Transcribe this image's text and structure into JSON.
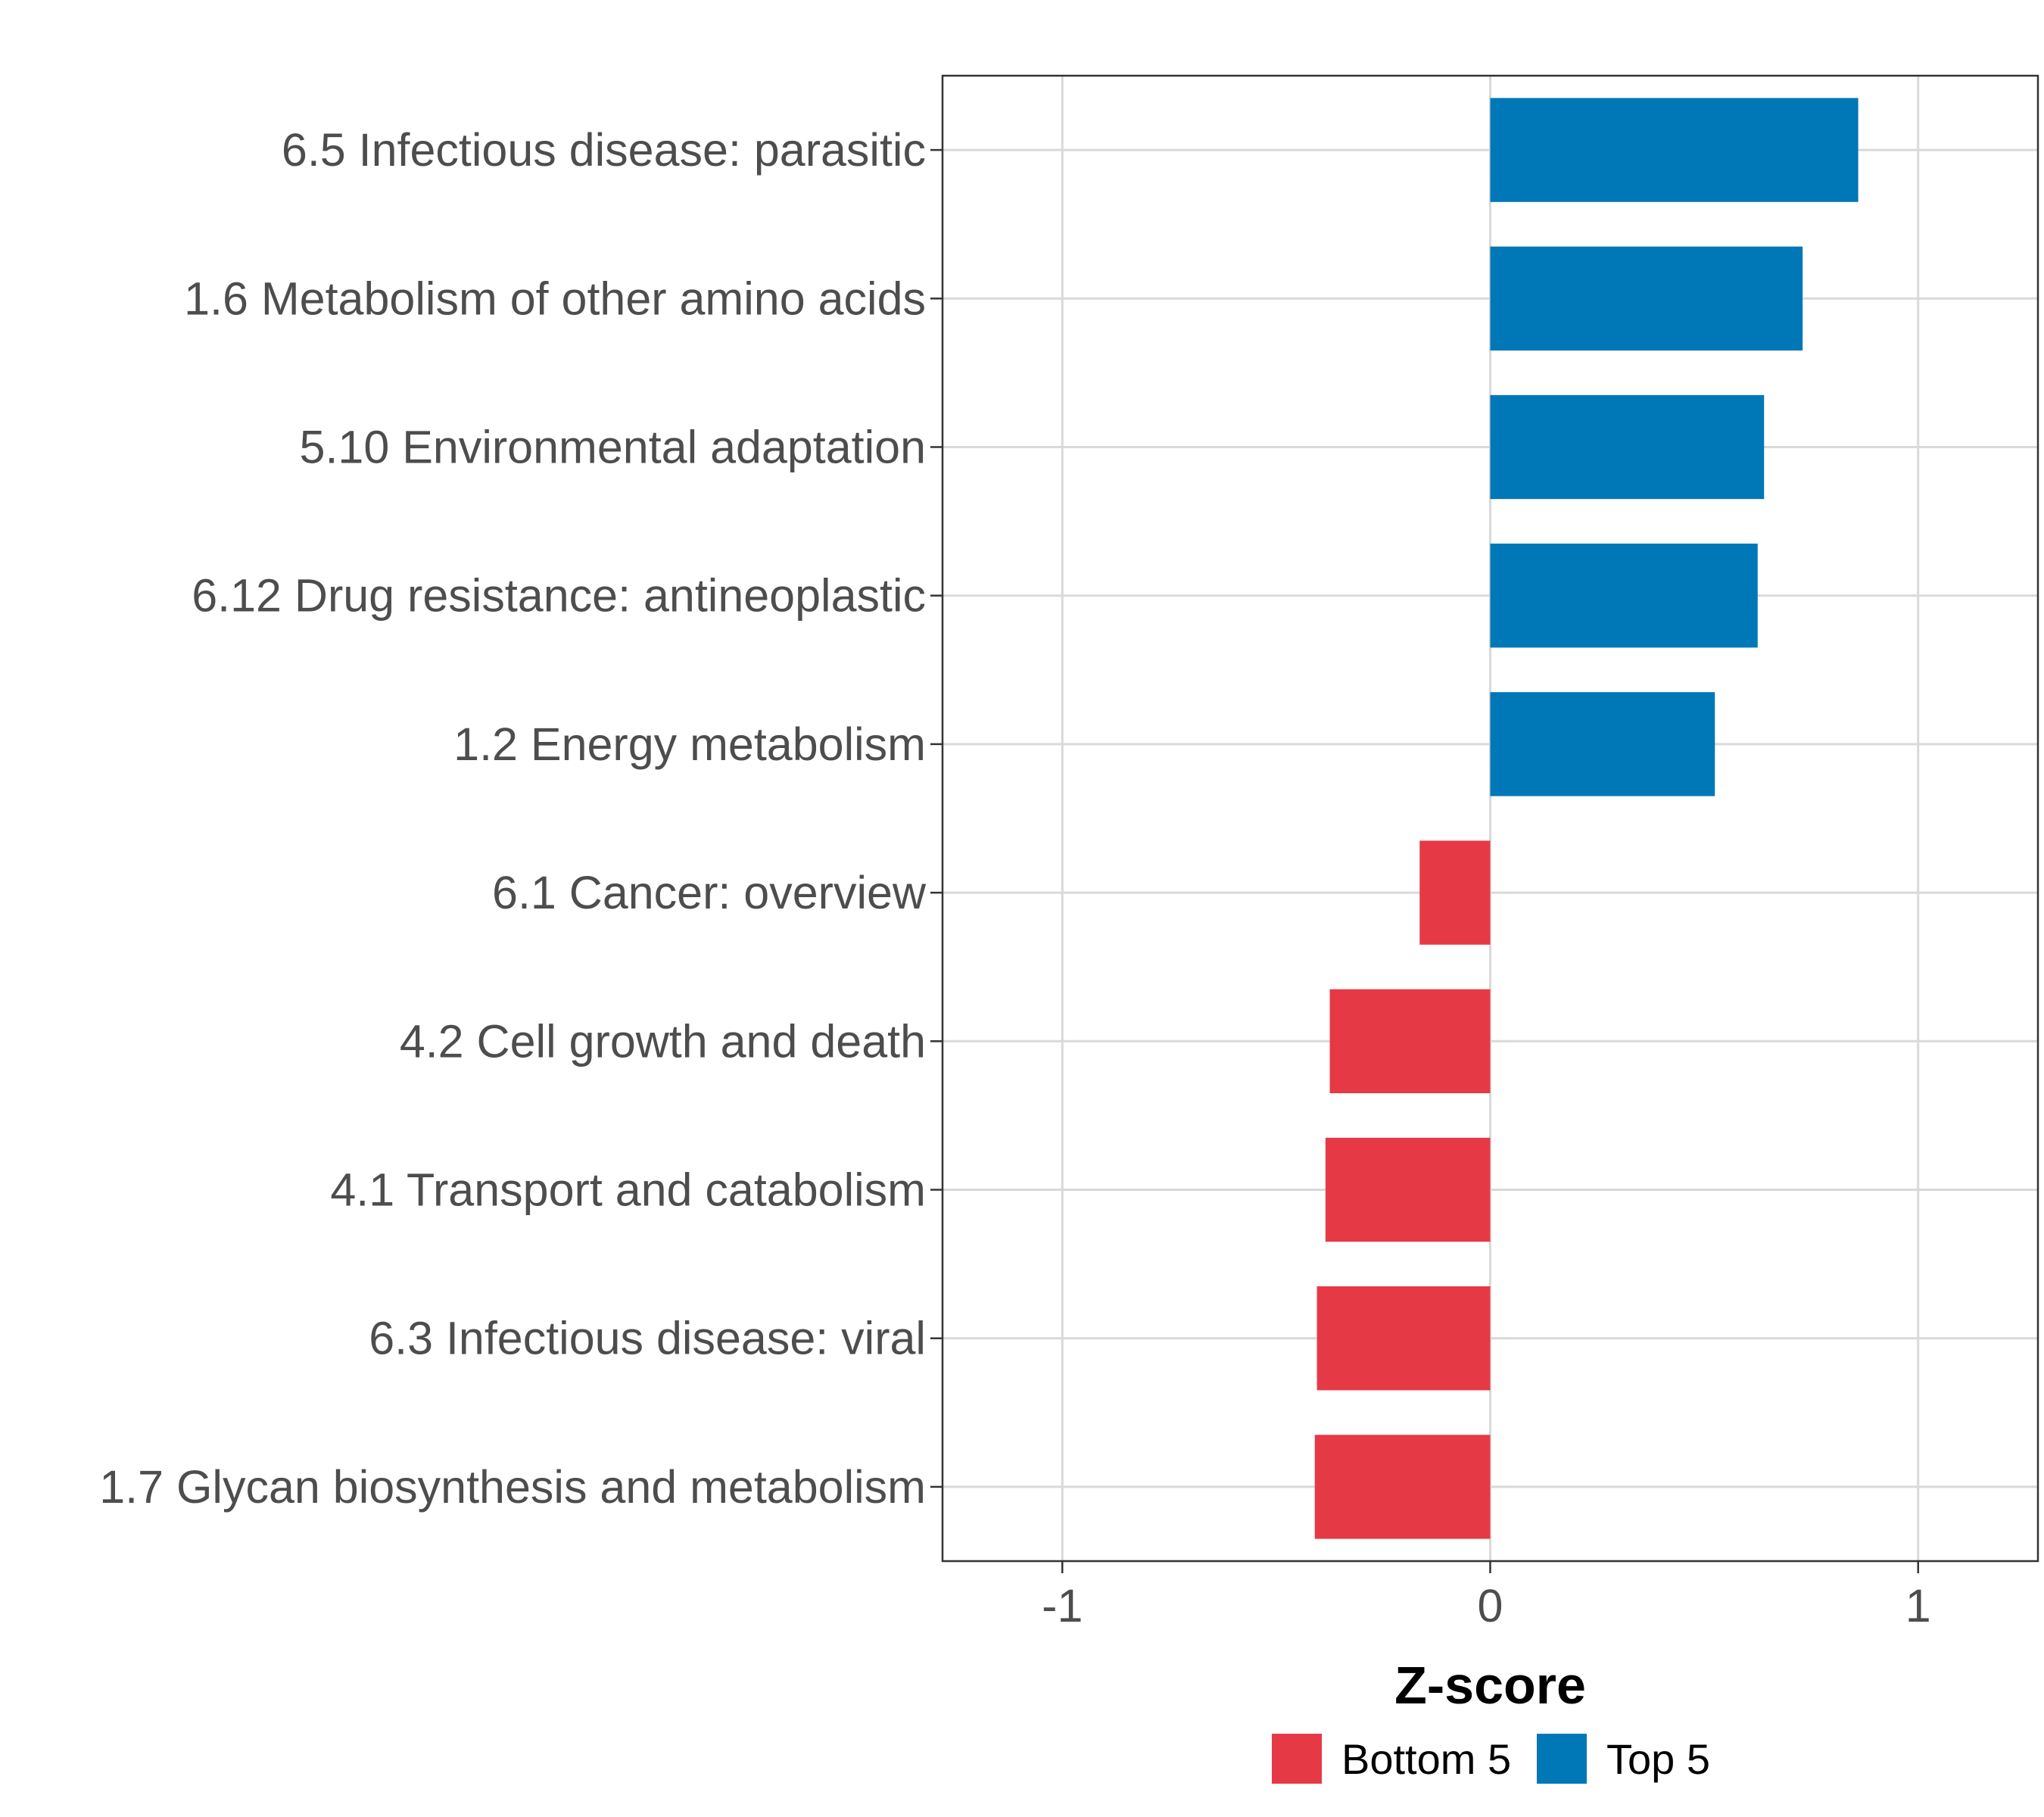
{
  "chart_data": {
    "type": "bar",
    "orientation": "horizontal",
    "categories": [
      "6.5 Infectious disease: parasitic",
      "1.6 Metabolism of other amino acids",
      "5.10 Environmental adaptation",
      "6.12 Drug resistance: antineoplastic",
      "1.2 Energy metabolism",
      "6.1 Cancer: overview",
      "4.2 Cell growth and death",
      "4.1 Transport and catabolism",
      "6.3 Infectious disease: viral",
      "1.7 Glycan biosynthesis and metabolism"
    ],
    "values": [
      0.86,
      0.73,
      0.64,
      0.625,
      0.525,
      -0.165,
      -0.375,
      -0.385,
      -0.405,
      -0.41
    ],
    "groups": [
      "Top 5",
      "Top 5",
      "Top 5",
      "Top 5",
      "Top 5",
      "Bottom 5",
      "Bottom 5",
      "Bottom 5",
      "Bottom 5",
      "Bottom 5"
    ],
    "xlabel": "Z-score",
    "ylabel": "",
    "xlim": [
      -1.28,
      1.28
    ],
    "xticks": [
      -1,
      0,
      1
    ],
    "xtick_labels": [
      "-1",
      "0",
      "1"
    ],
    "grid": true,
    "legend": {
      "position": "bottom",
      "entries": [
        {
          "name": "Bottom 5",
          "color": "#E63946"
        },
        {
          "name": "Top 5",
          "color": "#0077B6"
        }
      ]
    },
    "colors": {
      "Top 5": "#0077B6",
      "Bottom 5": "#E63946"
    }
  }
}
